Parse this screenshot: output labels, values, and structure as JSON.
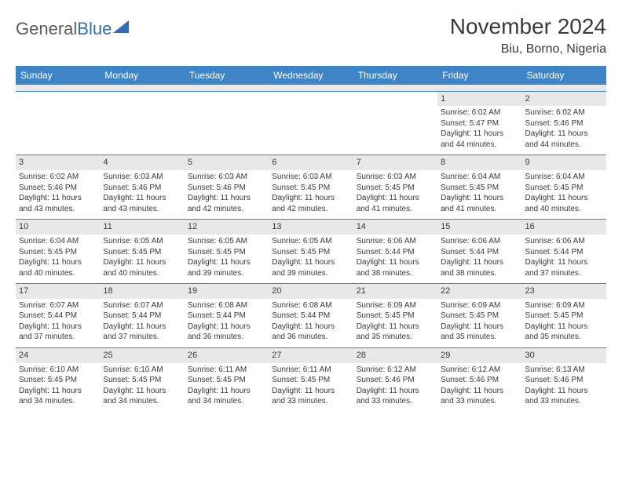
{
  "logo": {
    "text_gray": "General",
    "text_blue": "Blue"
  },
  "title": "November 2024",
  "location": "Biu, Borno, Nigeria",
  "colors": {
    "header_bg": "#3d85c6",
    "header_text": "#ffffff",
    "daynum_bg": "#e8e8e8",
    "border": "#3d85c6",
    "text": "#3a3a3a",
    "logo_gray": "#5a5a5a",
    "logo_blue": "#2d6fb5"
  },
  "day_headers": [
    "Sunday",
    "Monday",
    "Tuesday",
    "Wednesday",
    "Thursday",
    "Friday",
    "Saturday"
  ],
  "weeks": [
    [
      {
        "n": "",
        "l1": "",
        "l2": "",
        "l3": "",
        "l4": "",
        "empty": true
      },
      {
        "n": "",
        "l1": "",
        "l2": "",
        "l3": "",
        "l4": "",
        "empty": true
      },
      {
        "n": "",
        "l1": "",
        "l2": "",
        "l3": "",
        "l4": "",
        "empty": true
      },
      {
        "n": "",
        "l1": "",
        "l2": "",
        "l3": "",
        "l4": "",
        "empty": true
      },
      {
        "n": "",
        "l1": "",
        "l2": "",
        "l3": "",
        "l4": "",
        "empty": true
      },
      {
        "n": "1",
        "l1": "Sunrise: 6:02 AM",
        "l2": "Sunset: 5:47 PM",
        "l3": "Daylight: 11 hours",
        "l4": "and 44 minutes."
      },
      {
        "n": "2",
        "l1": "Sunrise: 6:02 AM",
        "l2": "Sunset: 5:46 PM",
        "l3": "Daylight: 11 hours",
        "l4": "and 44 minutes."
      }
    ],
    [
      {
        "n": "3",
        "l1": "Sunrise: 6:02 AM",
        "l2": "Sunset: 5:46 PM",
        "l3": "Daylight: 11 hours",
        "l4": "and 43 minutes."
      },
      {
        "n": "4",
        "l1": "Sunrise: 6:03 AM",
        "l2": "Sunset: 5:46 PM",
        "l3": "Daylight: 11 hours",
        "l4": "and 43 minutes."
      },
      {
        "n": "5",
        "l1": "Sunrise: 6:03 AM",
        "l2": "Sunset: 5:46 PM",
        "l3": "Daylight: 11 hours",
        "l4": "and 42 minutes."
      },
      {
        "n": "6",
        "l1": "Sunrise: 6:03 AM",
        "l2": "Sunset: 5:45 PM",
        "l3": "Daylight: 11 hours",
        "l4": "and 42 minutes."
      },
      {
        "n": "7",
        "l1": "Sunrise: 6:03 AM",
        "l2": "Sunset: 5:45 PM",
        "l3": "Daylight: 11 hours",
        "l4": "and 41 minutes."
      },
      {
        "n": "8",
        "l1": "Sunrise: 6:04 AM",
        "l2": "Sunset: 5:45 PM",
        "l3": "Daylight: 11 hours",
        "l4": "and 41 minutes."
      },
      {
        "n": "9",
        "l1": "Sunrise: 6:04 AM",
        "l2": "Sunset: 5:45 PM",
        "l3": "Daylight: 11 hours",
        "l4": "and 40 minutes."
      }
    ],
    [
      {
        "n": "10",
        "l1": "Sunrise: 6:04 AM",
        "l2": "Sunset: 5:45 PM",
        "l3": "Daylight: 11 hours",
        "l4": "and 40 minutes."
      },
      {
        "n": "11",
        "l1": "Sunrise: 6:05 AM",
        "l2": "Sunset: 5:45 PM",
        "l3": "Daylight: 11 hours",
        "l4": "and 40 minutes."
      },
      {
        "n": "12",
        "l1": "Sunrise: 6:05 AM",
        "l2": "Sunset: 5:45 PM",
        "l3": "Daylight: 11 hours",
        "l4": "and 39 minutes."
      },
      {
        "n": "13",
        "l1": "Sunrise: 6:05 AM",
        "l2": "Sunset: 5:45 PM",
        "l3": "Daylight: 11 hours",
        "l4": "and 39 minutes."
      },
      {
        "n": "14",
        "l1": "Sunrise: 6:06 AM",
        "l2": "Sunset: 5:44 PM",
        "l3": "Daylight: 11 hours",
        "l4": "and 38 minutes."
      },
      {
        "n": "15",
        "l1": "Sunrise: 6:06 AM",
        "l2": "Sunset: 5:44 PM",
        "l3": "Daylight: 11 hours",
        "l4": "and 38 minutes."
      },
      {
        "n": "16",
        "l1": "Sunrise: 6:06 AM",
        "l2": "Sunset: 5:44 PM",
        "l3": "Daylight: 11 hours",
        "l4": "and 37 minutes."
      }
    ],
    [
      {
        "n": "17",
        "l1": "Sunrise: 6:07 AM",
        "l2": "Sunset: 5:44 PM",
        "l3": "Daylight: 11 hours",
        "l4": "and 37 minutes."
      },
      {
        "n": "18",
        "l1": "Sunrise: 6:07 AM",
        "l2": "Sunset: 5:44 PM",
        "l3": "Daylight: 11 hours",
        "l4": "and 37 minutes."
      },
      {
        "n": "19",
        "l1": "Sunrise: 6:08 AM",
        "l2": "Sunset: 5:44 PM",
        "l3": "Daylight: 11 hours",
        "l4": "and 36 minutes."
      },
      {
        "n": "20",
        "l1": "Sunrise: 6:08 AM",
        "l2": "Sunset: 5:44 PM",
        "l3": "Daylight: 11 hours",
        "l4": "and 36 minutes."
      },
      {
        "n": "21",
        "l1": "Sunrise: 6:09 AM",
        "l2": "Sunset: 5:45 PM",
        "l3": "Daylight: 11 hours",
        "l4": "and 35 minutes."
      },
      {
        "n": "22",
        "l1": "Sunrise: 6:09 AM",
        "l2": "Sunset: 5:45 PM",
        "l3": "Daylight: 11 hours",
        "l4": "and 35 minutes."
      },
      {
        "n": "23",
        "l1": "Sunrise: 6:09 AM",
        "l2": "Sunset: 5:45 PM",
        "l3": "Daylight: 11 hours",
        "l4": "and 35 minutes."
      }
    ],
    [
      {
        "n": "24",
        "l1": "Sunrise: 6:10 AM",
        "l2": "Sunset: 5:45 PM",
        "l3": "Daylight: 11 hours",
        "l4": "and 34 minutes."
      },
      {
        "n": "25",
        "l1": "Sunrise: 6:10 AM",
        "l2": "Sunset: 5:45 PM",
        "l3": "Daylight: 11 hours",
        "l4": "and 34 minutes."
      },
      {
        "n": "26",
        "l1": "Sunrise: 6:11 AM",
        "l2": "Sunset: 5:45 PM",
        "l3": "Daylight: 11 hours",
        "l4": "and 34 minutes."
      },
      {
        "n": "27",
        "l1": "Sunrise: 6:11 AM",
        "l2": "Sunset: 5:45 PM",
        "l3": "Daylight: 11 hours",
        "l4": "and 33 minutes."
      },
      {
        "n": "28",
        "l1": "Sunrise: 6:12 AM",
        "l2": "Sunset: 5:46 PM",
        "l3": "Daylight: 11 hours",
        "l4": "and 33 minutes."
      },
      {
        "n": "29",
        "l1": "Sunrise: 6:12 AM",
        "l2": "Sunset: 5:46 PM",
        "l3": "Daylight: 11 hours",
        "l4": "and 33 minutes."
      },
      {
        "n": "30",
        "l1": "Sunrise: 6:13 AM",
        "l2": "Sunset: 5:46 PM",
        "l3": "Daylight: 11 hours",
        "l4": "and 33 minutes."
      }
    ]
  ]
}
